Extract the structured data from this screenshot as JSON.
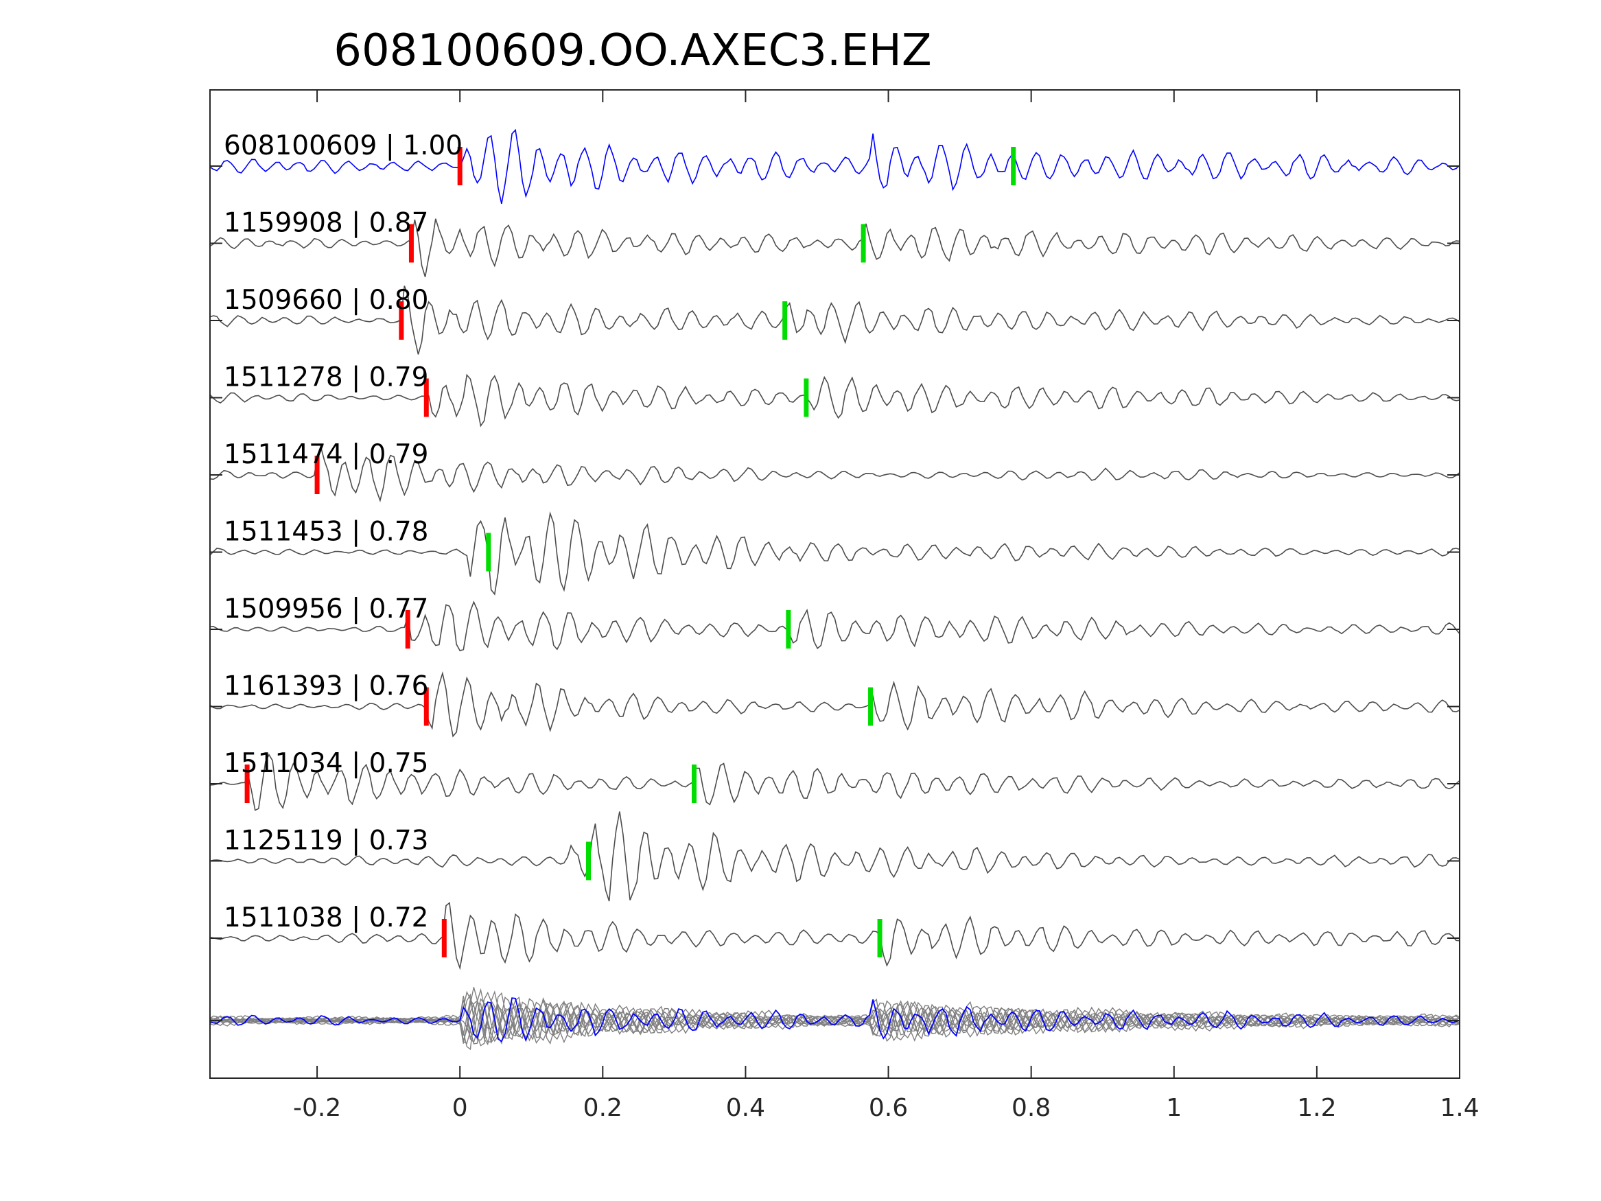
{
  "chart_data": {
    "type": "line",
    "title": "608100609.OO.AXEC3.EHZ",
    "xlabel": "",
    "ylabel": "",
    "xlim": [
      -0.35,
      1.4
    ],
    "xticks": [
      -0.2,
      0,
      0.2,
      0.4,
      0.6,
      0.8,
      1,
      1.2,
      1.4
    ],
    "xtick_labels": [
      "-0.2",
      "0",
      "0.2",
      "0.4",
      "0.6",
      "0.8",
      "1",
      "1.2",
      "1.4"
    ],
    "grid": false,
    "colors": {
      "master": "#0000ff",
      "trace": "#4d4d4d",
      "stack": "#808080",
      "p_pick": "#ff0000",
      "s_pick": "#00dd00"
    },
    "series": [
      {
        "label": "608100609 | 1.00",
        "p_pick": 0.0,
        "s_pick": 0.775,
        "master": true
      },
      {
        "label": "1159908 | 0.87",
        "p_pick": -0.068,
        "s_pick": 0.565
      },
      {
        "label": "1509660 | 0.80",
        "p_pick": -0.082,
        "s_pick": 0.455
      },
      {
        "label": "1511278 | 0.79",
        "p_pick": -0.047,
        "s_pick": 0.485
      },
      {
        "label": "1511474 | 0.79",
        "p_pick": -0.2,
        "s_pick": null
      },
      {
        "label": "1511453 | 0.78",
        "p_pick": null,
        "s_pick": 0.04
      },
      {
        "label": "1509956 | 0.77",
        "p_pick": -0.073,
        "s_pick": 0.46
      },
      {
        "label": "1161393 | 0.76",
        "p_pick": -0.047,
        "s_pick": 0.575
      },
      {
        "label": "1511034 | 0.75",
        "p_pick": -0.298,
        "s_pick": 0.328
      },
      {
        "label": "1125119 | 0.73",
        "p_pick": null,
        "s_pick": 0.18
      },
      {
        "label": "1511038 | 0.72",
        "p_pick": -0.022,
        "s_pick": 0.588
      }
    ]
  }
}
